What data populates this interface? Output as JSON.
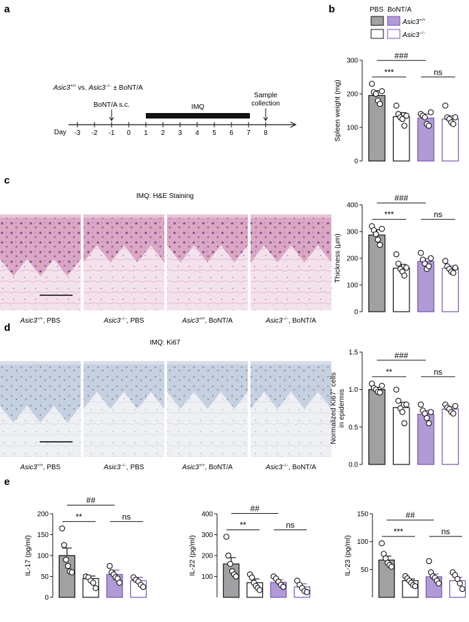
{
  "panel_labels": {
    "a": "a",
    "b": "b",
    "c": "c",
    "d": "d",
    "e": "e"
  },
  "colors": {
    "gray": "#a1a1a3",
    "purple": "#b09bd6",
    "purple_edge": "#7a4fb3",
    "black": "#111111"
  },
  "legend": {
    "pbs": "PBS",
    "bont": "BoNT/A",
    "wt_base": "Asic3",
    "wt_sup": "+/+",
    "ko_base": "Asic3",
    "ko_sup": "−/−"
  },
  "timeline": {
    "title_prefix": "Asic3",
    "title_sup1": "+/+",
    "title_mid": " vs. ",
    "title_mid2": "Asic3",
    "title_sup2": "−/−",
    "title_suffix": " ± BoNT/A",
    "day_label": "Day",
    "days": [
      "-3",
      "-2",
      "-1",
      "0",
      "1",
      "2",
      "3",
      "4",
      "5",
      "6",
      "7",
      "8"
    ],
    "bont_label": "BoNT/A s.c.",
    "imq_label": "IMQ",
    "sample_label_1": "Sample",
    "sample_label_2": "collection"
  },
  "image_titles": {
    "c": "IMQ: H&E Staining",
    "d": "IMQ: Ki67"
  },
  "image_captions": [
    {
      "g": "Asic3",
      "s": "+/+",
      "t": ", PBS"
    },
    {
      "g": "Asic3",
      "s": "−/−",
      "t": ", PBS"
    },
    {
      "g": "Asic3",
      "s": "+/+",
      "t": ", BoNT/A"
    },
    {
      "g": "Asic3",
      "s": "−/−",
      "t": ", BoNT/A"
    }
  ],
  "chart_data": [
    {
      "id": "b",
      "type": "bar",
      "ylabel": "Spleen weight (mg)",
      "ylim": [
        0,
        300
      ],
      "yticks": [
        0,
        100,
        200,
        300
      ],
      "values": [
        195,
        132,
        128,
        125
      ],
      "errors": [
        14,
        12,
        12,
        10
      ],
      "points": [
        [
          230,
          205,
          200,
          180,
          170,
          208
        ],
        [
          165,
          140,
          130,
          125,
          105,
          135
        ],
        [
          140,
          135,
          130,
          110,
          105,
          145
        ],
        [
          165,
          130,
          125,
          115,
          110,
          130
        ]
      ],
      "sig": {
        "top": "###",
        "left": "***",
        "right": "ns"
      }
    },
    {
      "id": "c",
      "type": "bar",
      "ylabel": "Thickness (μm)",
      "ylim": [
        0,
        400
      ],
      "yticks": [
        0,
        100,
        200,
        300,
        400
      ],
      "values": [
        287,
        163,
        188,
        163
      ],
      "errors": [
        20,
        14,
        11,
        8
      ],
      "points": [
        [
          320,
          305,
          290,
          270,
          250,
          310
        ],
        [
          215,
          180,
          160,
          150,
          135,
          165
        ],
        [
          220,
          195,
          180,
          160,
          170,
          200
        ],
        [
          190,
          170,
          160,
          150,
          145,
          165
        ]
      ],
      "sig": {
        "top": "###",
        "left": "***",
        "right": "ns"
      }
    },
    {
      "id": "d",
      "type": "bar",
      "ylabel": "Normalized Ki67+ cells in epidermis",
      "ylabel_1": "Normalized Ki67",
      "ylabel_sup": "+",
      "ylabel_1b": " cells",
      "ylabel_2": "in epidermis",
      "ylim": [
        0,
        1.5
      ],
      "yticks": [
        0.0,
        0.5,
        1.0,
        1.5
      ],
      "values": [
        1.0,
        0.76,
        0.67,
        0.74
      ],
      "errors": [
        0.03,
        0.07,
        0.05,
        0.03
      ],
      "points": [
        [
          1.08,
          1.02,
          1.0,
          0.97,
          0.96,
          1.05
        ],
        [
          1.0,
          0.85,
          0.75,
          0.7,
          0.55,
          0.8
        ],
        [
          0.8,
          0.72,
          0.68,
          0.62,
          0.55,
          0.7
        ],
        [
          0.8,
          0.76,
          0.74,
          0.7,
          0.68,
          0.78
        ]
      ],
      "sig": {
        "top": "###",
        "left": "**",
        "right": "ns"
      }
    },
    {
      "id": "e1",
      "type": "bar",
      "ylabel": "IL-17 (pg/ml)",
      "ylim": [
        0,
        200
      ],
      "yticks": [
        0,
        50,
        100,
        150,
        200
      ],
      "values": [
        100,
        45,
        55,
        40
      ],
      "errors": [
        18,
        6,
        10,
        8
      ],
      "points": [
        [
          165,
          125,
          90,
          75,
          62,
          60
        ],
        [
          50,
          48,
          40,
          35,
          22
        ],
        [
          75,
          60,
          55,
          48,
          45,
          35
        ],
        [
          48,
          42,
          38,
          30,
          25
        ]
      ],
      "sig": {
        "top": "##",
        "left": "**",
        "right": "ns"
      }
    },
    {
      "id": "e2",
      "type": "bar",
      "ylabel": "IL-22 (pg/ml)",
      "ylim": [
        0,
        400
      ],
      "yticks": [
        100,
        200,
        300,
        400
      ],
      "values": [
        160,
        70,
        72,
        50
      ],
      "errors": [
        30,
        18,
        12,
        15
      ],
      "points": [
        [
          290,
          200,
          160,
          125,
          110,
          100
        ],
        [
          110,
          95,
          70,
          55,
          45,
          35
        ],
        [
          100,
          90,
          75,
          60,
          50
        ],
        [
          80,
          60,
          45,
          30,
          25
        ]
      ],
      "sig": {
        "top": "##",
        "left": "**",
        "right": "ns"
      }
    },
    {
      "id": "e3",
      "type": "bar",
      "ylabel": "IL-23 (pg/ml)",
      "ylim": [
        0,
        150
      ],
      "yticks": [
        50,
        100,
        150
      ],
      "values": [
        67,
        30,
        37,
        30
      ],
      "errors": [
        7,
        3,
        5,
        6
      ],
      "points": [
        [
          97,
          78,
          70,
          62,
          58,
          55
        ],
        [
          38,
          34,
          30,
          26,
          22,
          20
        ],
        [
          65,
          45,
          38,
          35,
          30,
          25
        ],
        [
          45,
          40,
          33,
          25,
          15
        ]
      ],
      "sig": {
        "top": "##",
        "left": "***",
        "right": "ns"
      }
    }
  ]
}
